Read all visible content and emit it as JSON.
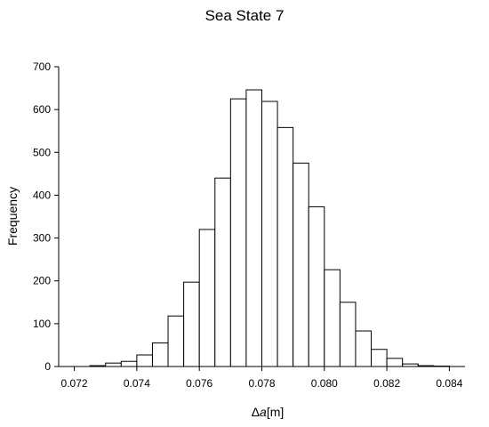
{
  "chart_data": {
    "type": "bar",
    "title": "Sea State 7",
    "xlabel_symbol": "Δ",
    "xlabel_var": "a",
    "xlabel_unit": "[m]",
    "ylabel": "Frequency",
    "xlim": [
      0.0715,
      0.0845
    ],
    "ylim": [
      0,
      700
    ],
    "xticks": [
      0.072,
      0.074,
      0.076,
      0.078,
      0.08,
      0.082,
      0.084
    ],
    "xtick_labels": [
      "0.072",
      "0.074",
      "0.076",
      "0.078",
      "0.080",
      "0.082",
      "0.084"
    ],
    "yticks": [
      0,
      100,
      200,
      300,
      400,
      500,
      600,
      700
    ],
    "ytick_labels": [
      "0",
      "100",
      "200",
      "300",
      "400",
      "500",
      "600",
      "700"
    ],
    "bin_width": 0.0005,
    "bin_left_edges": [
      0.0725,
      0.073,
      0.0735,
      0.074,
      0.0745,
      0.075,
      0.0755,
      0.076,
      0.0765,
      0.077,
      0.0775,
      0.078,
      0.0785,
      0.079,
      0.0795,
      0.08,
      0.0805,
      0.081,
      0.0815,
      0.082,
      0.0825,
      0.083,
      0.0835
    ],
    "values": [
      2,
      8,
      12,
      27,
      55,
      118,
      197,
      320,
      440,
      625,
      646,
      619,
      558,
      475,
      373,
      226,
      150,
      83,
      40,
      19,
      6,
      2,
      1
    ],
    "grid": false,
    "legend": "none"
  }
}
